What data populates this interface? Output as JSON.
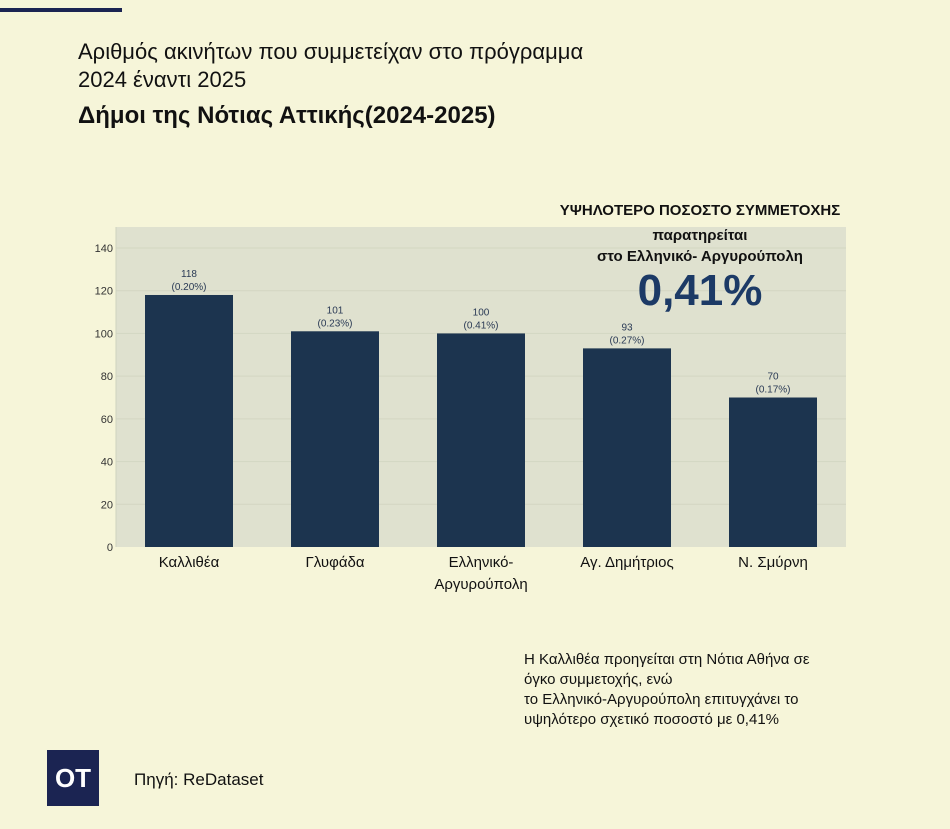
{
  "title_line1": "Αριθμός ακινήτων που συμμετείχαν στο πρόγραμμα",
  "title_line2": "2024 έναντι 2025",
  "subtitle": "Δήμοι της Νότιας Αττικής(2024-2025)",
  "highlight": {
    "line1": "ΥΨΗΛΟΤΕΡΟ ΠΟΣΟΣΤΟ ΣΥΜΜΕΤΟΧΗΣ",
    "line2": "παρατηρείται",
    "line3": "στο Ελληνικό- Αργυρούπολη",
    "value": "0,41%"
  },
  "note": [
    "Η Καλλιθέα προηγείται στη Νότια Αθήνα σε",
    "όγκο συμμετοχής, ενώ",
    "το Ελληνικό-Αργυρούπολη επιτυγχάνει το",
    "υψηλότερο σχετικό ποσοστό με 0,41%"
  ],
  "logo": "OT",
  "source": "Πηγή: ReDataset",
  "chart_data": {
    "type": "bar",
    "categories": [
      [
        "Καλλιθέα"
      ],
      [
        "Γλυφάδα"
      ],
      [
        "Ελληνικό-",
        "Αργυρούπολη"
      ],
      [
        "Αγ. Δημήτριος"
      ],
      [
        "Ν. Σμύρνη"
      ]
    ],
    "values": [
      118,
      101,
      100,
      93,
      70
    ],
    "labels": [
      "(0.20%)",
      "(0.23%)",
      "(0.41%)",
      "(0.27%)",
      "(0.17%)"
    ],
    "ylim": [
      0,
      148
    ],
    "yticks": [
      0,
      20,
      40,
      60,
      80,
      100,
      120,
      140
    ],
    "grid": true,
    "colors": {
      "bar": "#1c344f",
      "plot_bg": "#dfe1cf",
      "grid": "#d3d6c2"
    }
  }
}
